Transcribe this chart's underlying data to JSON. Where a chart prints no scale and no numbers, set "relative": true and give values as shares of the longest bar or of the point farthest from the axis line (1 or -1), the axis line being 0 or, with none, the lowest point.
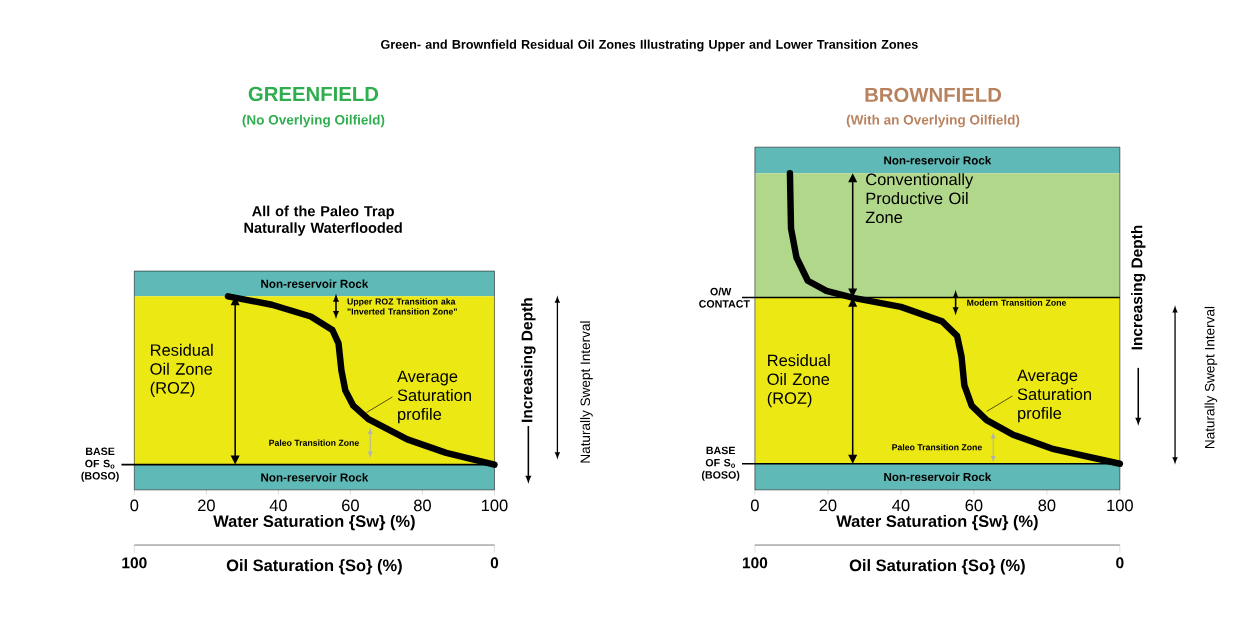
{
  "chart_data": [
    {
      "type": "line",
      "title": "GREENFIELD",
      "subtitle": "(No Overlying Oilfield)",
      "xlabel": "Water Saturation {Sw} (%)",
      "ylabel": "Increasing Depth",
      "y2label": "Naturally Swept Interval",
      "relative": true,
      "marker": "none",
      "color": "#000000",
      "x": [
        26,
        38.2,
        49,
        55,
        56.7,
        57.5,
        58.6,
        60.8,
        65,
        75.8,
        86.6,
        100
      ],
      "values": [
        1,
        0.95,
        0.88,
        0.8,
        0.72,
        0.56,
        0.44,
        0.35,
        0.27,
        0.15,
        0.07,
        0
      ],
      "xlim": [
        0,
        100
      ],
      "xticks": [
        0,
        20,
        40,
        60,
        80,
        100
      ],
      "x2lim": [
        100,
        0
      ],
      "x2ticks": [
        100,
        0
      ],
      "x2label": "Oil Saturation {So} (%)",
      "bands": [
        {
          "axis": "y",
          "from": 1,
          "to": 1.15,
          "label": "Non-reservoir Rock",
          "color": "#5fb9b6"
        },
        {
          "axis": "y",
          "from": 0,
          "to": 1,
          "label": "Residual Oil Zone (ROZ)",
          "color": "#ece814"
        },
        {
          "axis": "y",
          "from": -0.15,
          "to": 0,
          "label": "Non-reservoir Rock",
          "color": "#5fb9b6"
        }
      ],
      "annotations": [
        "BASE OF S$_{o}$ (BOSO)",
        "Green- and Brownfield Residual Oil Zones Illustrating Upper and Lower Transition Zones",
        "All of the Paleo Trap Naturally Waterflooded",
        "Upper ROZ Transition aka \"Inverted Transition Zone\"",
        {
          "text": "Average Saturation profile",
          "x": 64.5,
          "y": 0.31
        },
        "Paleo Transition Zone"
      ]
    },
    {
      "type": "line",
      "title": "BROWNFIELD",
      "subtitle": "(With an Overlying Oilfield)",
      "xlabel": "Water Saturation {Sw} (%)",
      "ylabel": "Increasing Depth",
      "y2label": "Naturally Swept Interval",
      "relative": true,
      "marker": "none",
      "color": "#000000",
      "x": [
        9.6,
        9.9,
        11.4,
        14.5,
        19.6,
        27.3,
        40,
        51.3,
        55.4,
        56.6,
        57.4,
        59.4,
        63.5,
        70.7,
        81.9,
        100
      ],
      "values": [
        1,
        0.81,
        0.71,
        0.63,
        0.595,
        0.57,
        0.54,
        0.49,
        0.44,
        0.37,
        0.27,
        0.2,
        0.15,
        0.1,
        0.05,
        0
      ],
      "xlim": [
        0,
        100
      ],
      "xticks": [
        0,
        20,
        40,
        60,
        80,
        100
      ],
      "x2lim": [
        100,
        0
      ],
      "x2ticks": [
        100,
        0
      ],
      "x2label": "Oil Saturation {So} (%)",
      "bands": [
        {
          "axis": "y",
          "from": 1,
          "to": 1.09,
          "label": "Non-reservoir Rock",
          "color": "#5fb9b6"
        },
        {
          "axis": "y",
          "from": 0.572,
          "to": 1,
          "label": "Conventionally Productive Oil Zone",
          "color": "#b1d88a"
        },
        {
          "axis": "y",
          "from": 0,
          "to": 0.572,
          "label": "Residual Oil Zone (ROZ)",
          "color": "#ece814"
        },
        {
          "axis": "y",
          "from": -0.09,
          "to": 0,
          "label": "Non-reservoir Rock",
          "color": "#5fb9b6"
        }
      ],
      "ref_lines": [
        {
          "axis": "y",
          "value": 0.572,
          "label": "O/W CONTACT"
        }
      ],
      "annotations": [
        "BASE OF S$_{o}$ (BOSO)",
        {
          "text": "Modern Transition Zone",
          "x": 55,
          "y": 0.555
        },
        {
          "text": "Average Saturation profile",
          "x": 63.5,
          "y": 0.18
        },
        "Paleo Transition Zone"
      ]
    }
  ]
}
